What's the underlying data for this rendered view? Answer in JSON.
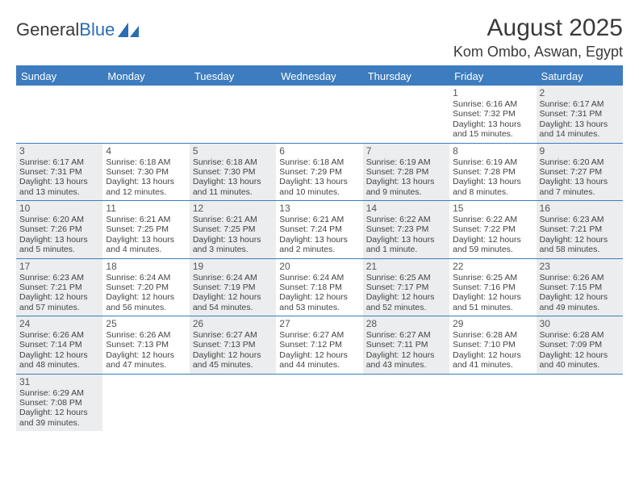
{
  "logo": {
    "text1": "General",
    "text2": "Blue",
    "sail_color": "#2a6db3"
  },
  "title": "August 2025",
  "location": "Kom Ombo, Aswan, Egypt",
  "colors": {
    "header_bg": "#3d7cbf",
    "header_text": "#ffffff",
    "shade_bg": "#ecedee",
    "rule": "#3d7cbf",
    "text": "#333333"
  },
  "day_headers": [
    "Sunday",
    "Monday",
    "Tuesday",
    "Wednesday",
    "Thursday",
    "Friday",
    "Saturday"
  ],
  "weeks": [
    [
      null,
      null,
      null,
      null,
      null,
      {
        "n": "1",
        "sunrise": "6:16 AM",
        "sunset": "7:32 PM",
        "daylight": "13 hours and 15 minutes.",
        "shade": false
      },
      {
        "n": "2",
        "sunrise": "6:17 AM",
        "sunset": "7:31 PM",
        "daylight": "13 hours and 14 minutes.",
        "shade": true
      }
    ],
    [
      {
        "n": "3",
        "sunrise": "6:17 AM",
        "sunset": "7:31 PM",
        "daylight": "13 hours and 13 minutes.",
        "shade": true
      },
      {
        "n": "4",
        "sunrise": "6:18 AM",
        "sunset": "7:30 PM",
        "daylight": "13 hours and 12 minutes.",
        "shade": false
      },
      {
        "n": "5",
        "sunrise": "6:18 AM",
        "sunset": "7:30 PM",
        "daylight": "13 hours and 11 minutes.",
        "shade": true
      },
      {
        "n": "6",
        "sunrise": "6:18 AM",
        "sunset": "7:29 PM",
        "daylight": "13 hours and 10 minutes.",
        "shade": false
      },
      {
        "n": "7",
        "sunrise": "6:19 AM",
        "sunset": "7:28 PM",
        "daylight": "13 hours and 9 minutes.",
        "shade": true
      },
      {
        "n": "8",
        "sunrise": "6:19 AM",
        "sunset": "7:28 PM",
        "daylight": "13 hours and 8 minutes.",
        "shade": false
      },
      {
        "n": "9",
        "sunrise": "6:20 AM",
        "sunset": "7:27 PM",
        "daylight": "13 hours and 7 minutes.",
        "shade": true
      }
    ],
    [
      {
        "n": "10",
        "sunrise": "6:20 AM",
        "sunset": "7:26 PM",
        "daylight": "13 hours and 5 minutes.",
        "shade": true
      },
      {
        "n": "11",
        "sunrise": "6:21 AM",
        "sunset": "7:25 PM",
        "daylight": "13 hours and 4 minutes.",
        "shade": false
      },
      {
        "n": "12",
        "sunrise": "6:21 AM",
        "sunset": "7:25 PM",
        "daylight": "13 hours and 3 minutes.",
        "shade": true
      },
      {
        "n": "13",
        "sunrise": "6:21 AM",
        "sunset": "7:24 PM",
        "daylight": "13 hours and 2 minutes.",
        "shade": false
      },
      {
        "n": "14",
        "sunrise": "6:22 AM",
        "sunset": "7:23 PM",
        "daylight": "13 hours and 1 minute.",
        "shade": true
      },
      {
        "n": "15",
        "sunrise": "6:22 AM",
        "sunset": "7:22 PM",
        "daylight": "12 hours and 59 minutes.",
        "shade": false
      },
      {
        "n": "16",
        "sunrise": "6:23 AM",
        "sunset": "7:21 PM",
        "daylight": "12 hours and 58 minutes.",
        "shade": true
      }
    ],
    [
      {
        "n": "17",
        "sunrise": "6:23 AM",
        "sunset": "7:21 PM",
        "daylight": "12 hours and 57 minutes.",
        "shade": true
      },
      {
        "n": "18",
        "sunrise": "6:24 AM",
        "sunset": "7:20 PM",
        "daylight": "12 hours and 56 minutes.",
        "shade": false
      },
      {
        "n": "19",
        "sunrise": "6:24 AM",
        "sunset": "7:19 PM",
        "daylight": "12 hours and 54 minutes.",
        "shade": true
      },
      {
        "n": "20",
        "sunrise": "6:24 AM",
        "sunset": "7:18 PM",
        "daylight": "12 hours and 53 minutes.",
        "shade": false
      },
      {
        "n": "21",
        "sunrise": "6:25 AM",
        "sunset": "7:17 PM",
        "daylight": "12 hours and 52 minutes.",
        "shade": true
      },
      {
        "n": "22",
        "sunrise": "6:25 AM",
        "sunset": "7:16 PM",
        "daylight": "12 hours and 51 minutes.",
        "shade": false
      },
      {
        "n": "23",
        "sunrise": "6:26 AM",
        "sunset": "7:15 PM",
        "daylight": "12 hours and 49 minutes.",
        "shade": true
      }
    ],
    [
      {
        "n": "24",
        "sunrise": "6:26 AM",
        "sunset": "7:14 PM",
        "daylight": "12 hours and 48 minutes.",
        "shade": true
      },
      {
        "n": "25",
        "sunrise": "6:26 AM",
        "sunset": "7:13 PM",
        "daylight": "12 hours and 47 minutes.",
        "shade": false
      },
      {
        "n": "26",
        "sunrise": "6:27 AM",
        "sunset": "7:13 PM",
        "daylight": "12 hours and 45 minutes.",
        "shade": true
      },
      {
        "n": "27",
        "sunrise": "6:27 AM",
        "sunset": "7:12 PM",
        "daylight": "12 hours and 44 minutes.",
        "shade": false
      },
      {
        "n": "28",
        "sunrise": "6:27 AM",
        "sunset": "7:11 PM",
        "daylight": "12 hours and 43 minutes.",
        "shade": true
      },
      {
        "n": "29",
        "sunrise": "6:28 AM",
        "sunset": "7:10 PM",
        "daylight": "12 hours and 41 minutes.",
        "shade": false
      },
      {
        "n": "30",
        "sunrise": "6:28 AM",
        "sunset": "7:09 PM",
        "daylight": "12 hours and 40 minutes.",
        "shade": true
      }
    ],
    [
      {
        "n": "31",
        "sunrise": "6:29 AM",
        "sunset": "7:08 PM",
        "daylight": "12 hours and 39 minutes.",
        "shade": true
      },
      null,
      null,
      null,
      null,
      null,
      null
    ]
  ],
  "labels": {
    "sunrise": "Sunrise: ",
    "sunset": "Sunset: ",
    "daylight": "Daylight: "
  }
}
